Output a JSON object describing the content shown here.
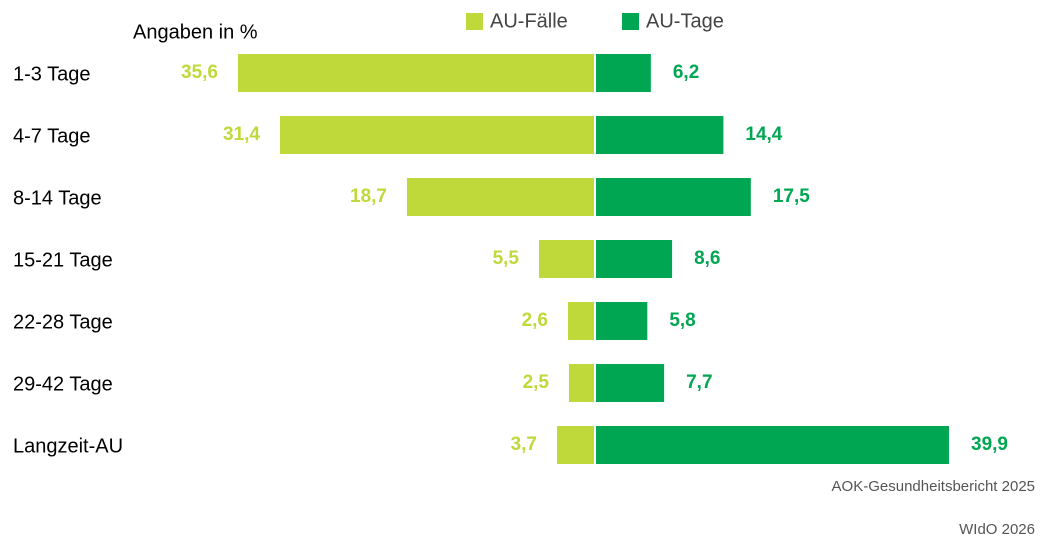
{
  "chart_data": {
    "type": "bar",
    "orientation": "diverging",
    "annotation": "Angaben in %",
    "categories": [
      "1-3 Tage",
      "4-7 Tage",
      "8-14 Tage",
      "15-21 Tage",
      "22-28 Tage",
      "29-42 Tage",
      "Langzeit-AU"
    ],
    "series": [
      {
        "name": "AU-Fälle",
        "color": "#c0d93a",
        "values": [
          35.6,
          31.4,
          18.7,
          5.5,
          2.6,
          2.5,
          3.7
        ],
        "value_labels": [
          "35,6",
          "31,4",
          "18,7",
          "5,5",
          "2,6",
          "2,5",
          "3,7"
        ]
      },
      {
        "name": "AU-Tage",
        "color": "#00a651",
        "values": [
          6.2,
          14.4,
          17.5,
          8.6,
          5.8,
          7.7,
          39.9
        ],
        "value_labels": [
          "6,2",
          "14,4",
          "17,5",
          "8,6",
          "5,8",
          "7,7",
          "39,9"
        ]
      }
    ],
    "source": "AOK-Gesundheitsbericht 2025",
    "credit": "WIdO 2026"
  }
}
